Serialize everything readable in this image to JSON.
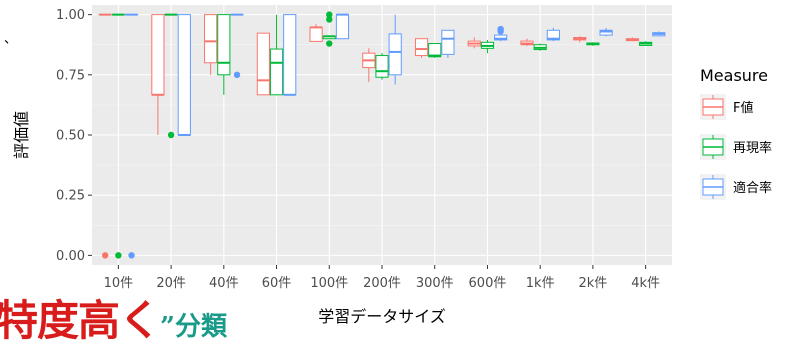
{
  "chart_data": {
    "type": "boxplot",
    "xlabel": "学習データサイズ",
    "ylabel": "評価値",
    "ylim": [
      -0.04,
      1.04
    ],
    "yticks": [
      {
        "value": 0.0,
        "label": "0.00"
      },
      {
        "value": 0.25,
        "label": "0.25"
      },
      {
        "value": 0.5,
        "label": "0.50"
      },
      {
        "value": 0.75,
        "label": "0.75"
      },
      {
        "value": 1.0,
        "label": "1.00"
      }
    ],
    "categories": [
      "10件",
      "20件",
      "40件",
      "60件",
      "100件",
      "200件",
      "300件",
      "600件",
      "1k件",
      "2k件",
      "4k件"
    ],
    "grid": true,
    "legend": {
      "title": "Measure",
      "position": "right",
      "entries": [
        {
          "label": "F値",
          "color": "#F8766D"
        },
        {
          "label": "再現率",
          "color": "#00BA38"
        },
        {
          "label": "適合率",
          "color": "#619CFF"
        }
      ]
    },
    "series": [
      {
        "name": "F値",
        "color": "#F8766D",
        "boxes": [
          {
            "min": 1.0,
            "q1": 1.0,
            "median": 1.0,
            "q3": 1.0,
            "max": 1.0,
            "outliers": [
              0.0
            ]
          },
          {
            "min": 0.5,
            "q1": 0.667,
            "median": 0.667,
            "q3": 1.0,
            "max": 1.0,
            "outliers": []
          },
          {
            "min": 0.75,
            "q1": 0.8,
            "median": 0.889,
            "q3": 1.0,
            "max": 1.0,
            "outliers": []
          },
          {
            "min": 0.667,
            "q1": 0.667,
            "median": 0.727,
            "q3": 0.923,
            "max": 0.923,
            "outliers": []
          },
          {
            "min": 0.889,
            "q1": 0.889,
            "median": 0.947,
            "q3": 0.947,
            "max": 0.96,
            "outliers": []
          },
          {
            "min": 0.72,
            "q1": 0.78,
            "median": 0.81,
            "q3": 0.84,
            "max": 0.86,
            "outliers": []
          },
          {
            "min": 0.82,
            "q1": 0.83,
            "median": 0.857,
            "q3": 0.9,
            "max": 0.9,
            "outliers": []
          },
          {
            "min": 0.86,
            "q1": 0.87,
            "median": 0.88,
            "q3": 0.89,
            "max": 0.905,
            "outliers": []
          },
          {
            "min": 0.87,
            "q1": 0.875,
            "median": 0.88,
            "q3": 0.89,
            "max": 0.9,
            "outliers": []
          },
          {
            "min": 0.885,
            "q1": 0.895,
            "median": 0.9,
            "q3": 0.905,
            "max": 0.91,
            "outliers": []
          },
          {
            "min": 0.89,
            "q1": 0.892,
            "median": 0.896,
            "q3": 0.9,
            "max": 0.905,
            "outliers": []
          }
        ]
      },
      {
        "name": "再現率",
        "color": "#00BA38",
        "boxes": [
          {
            "min": 1.0,
            "q1": 1.0,
            "median": 1.0,
            "q3": 1.0,
            "max": 1.0,
            "outliers": [
              0.0
            ]
          },
          {
            "min": 1.0,
            "q1": 1.0,
            "median": 1.0,
            "q3": 1.0,
            "max": 1.0,
            "outliers": [
              0.5
            ]
          },
          {
            "min": 0.667,
            "q1": 0.75,
            "median": 0.8,
            "q3": 1.0,
            "max": 1.0,
            "outliers": []
          },
          {
            "min": 0.667,
            "q1": 0.667,
            "median": 0.8,
            "q3": 0.857,
            "max": 1.0,
            "outliers": []
          },
          {
            "min": 0.9,
            "q1": 0.9,
            "median": 0.91,
            "q3": 0.91,
            "max": 0.91,
            "outliers": [
              1.0,
              0.98,
              0.88
            ]
          },
          {
            "min": 0.73,
            "q1": 0.74,
            "median": 0.765,
            "q3": 0.83,
            "max": 0.84,
            "outliers": []
          },
          {
            "min": 0.82,
            "q1": 0.825,
            "median": 0.83,
            "q3": 0.88,
            "max": 0.88,
            "outliers": []
          },
          {
            "min": 0.84,
            "q1": 0.86,
            "median": 0.87,
            "q3": 0.885,
            "max": 0.895,
            "outliers": []
          },
          {
            "min": 0.85,
            "q1": 0.855,
            "median": 0.862,
            "q3": 0.875,
            "max": 0.88,
            "outliers": []
          },
          {
            "min": 0.87,
            "q1": 0.875,
            "median": 0.88,
            "q3": 0.882,
            "max": 0.885,
            "outliers": []
          },
          {
            "min": 0.87,
            "q1": 0.872,
            "median": 0.88,
            "q3": 0.885,
            "max": 0.89,
            "outliers": []
          }
        ]
      },
      {
        "name": "適合率",
        "color": "#619CFF",
        "boxes": [
          {
            "min": 1.0,
            "q1": 1.0,
            "median": 1.0,
            "q3": 1.0,
            "max": 1.0,
            "outliers": [
              0.0
            ]
          },
          {
            "min": 0.5,
            "q1": 0.5,
            "median": 0.5,
            "q3": 1.0,
            "max": 1.0,
            "outliers": []
          },
          {
            "min": 1.0,
            "q1": 1.0,
            "median": 1.0,
            "q3": 1.0,
            "max": 1.0,
            "outliers": [
              0.75
            ]
          },
          {
            "min": 0.667,
            "q1": 0.667,
            "median": 0.667,
            "q3": 1.0,
            "max": 1.0,
            "outliers": []
          },
          {
            "min": 0.9,
            "q1": 0.9,
            "median": 1.0,
            "q3": 1.0,
            "max": 1.0,
            "outliers": []
          },
          {
            "min": 0.71,
            "q1": 0.75,
            "median": 0.845,
            "q3": 0.92,
            "max": 1.0,
            "outliers": []
          },
          {
            "min": 0.82,
            "q1": 0.835,
            "median": 0.9,
            "q3": 0.935,
            "max": 0.935,
            "outliers": []
          },
          {
            "min": 0.89,
            "q1": 0.895,
            "median": 0.9,
            "q3": 0.915,
            "max": 0.915,
            "outliers": [
              0.94,
              0.93
            ]
          },
          {
            "min": 0.89,
            "q1": 0.895,
            "median": 0.9,
            "q3": 0.935,
            "max": 0.945,
            "outliers": []
          },
          {
            "min": 0.91,
            "q1": 0.915,
            "median": 0.93,
            "q3": 0.935,
            "max": 0.945,
            "outliers": []
          },
          {
            "min": 0.91,
            "q1": 0.912,
            "median": 0.92,
            "q3": 0.925,
            "max": 0.93,
            "outliers": []
          }
        ]
      }
    ]
  },
  "page_fragments": {
    "left_mark": "、",
    "caption_red": "特度高く",
    "caption_green": "”分類"
  }
}
